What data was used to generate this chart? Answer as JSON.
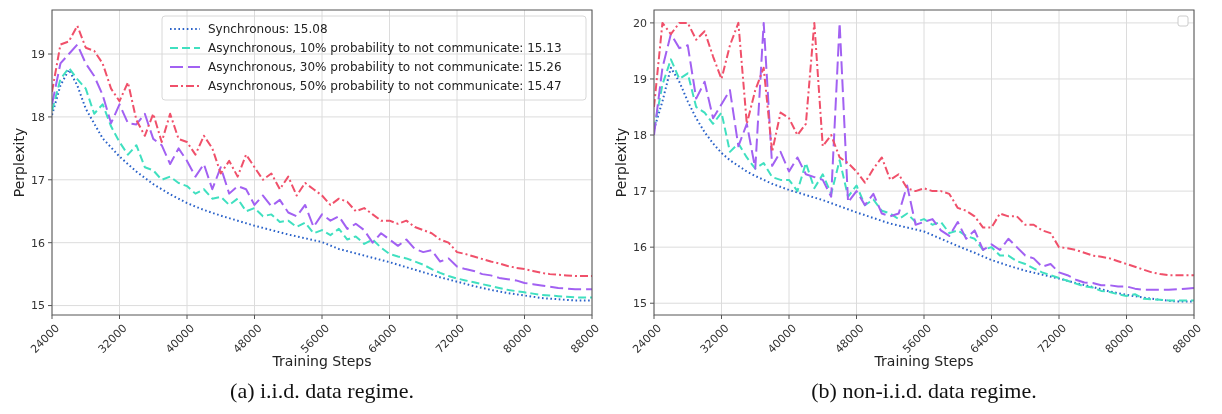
{
  "chart_data": [
    {
      "type": "line",
      "title": "(a) i.i.d. data regime.",
      "xlabel": "Training Steps",
      "ylabel": "Perplexity",
      "xlim": [
        24000,
        88000
      ],
      "xticks": [
        24000,
        32000,
        40000,
        48000,
        56000,
        64000,
        72000,
        80000,
        88000
      ],
      "ylim": [
        14.85,
        19.7
      ],
      "yticks": [
        15,
        16,
        17,
        18,
        19
      ],
      "grid": true,
      "legend": "top right",
      "x": [
        24000,
        25000,
        26000,
        27000,
        28000,
        29000,
        30000,
        31000,
        32000,
        33000,
        34000,
        35000,
        36000,
        37000,
        38000,
        39000,
        40000,
        41000,
        42000,
        43000,
        44000,
        45000,
        46000,
        47000,
        48000,
        49000,
        50000,
        51000,
        52000,
        53000,
        54000,
        55000,
        56000,
        57000,
        58000,
        59000,
        60000,
        61000,
        62000,
        63000,
        64000,
        65000,
        66000,
        67000,
        68000,
        69000,
        70000,
        71000,
        72000,
        73000,
        74000,
        75000,
        76000,
        77000,
        78000,
        79000,
        80000,
        81000,
        82000,
        83000,
        84000,
        85000,
        86000,
        87000,
        88000
      ],
      "series": [
        {
          "name": "Synchronous: 15.08",
          "color": "#2a62c9",
          "line_style": "dotted",
          "x": [
            24000,
            25000,
            26000,
            27000,
            28000,
            30000,
            32000,
            34000,
            36000,
            38000,
            40000,
            42000,
            44000,
            46000,
            48000,
            50000,
            52000,
            54000,
            56000,
            58000,
            60000,
            62000,
            64000,
            66000,
            68000,
            70000,
            72000,
            74000,
            76000,
            78000,
            80000,
            82000,
            84000,
            86000,
            88000
          ],
          "values": [
            18.03,
            18.5,
            18.75,
            18.5,
            18.13,
            17.66,
            17.37,
            17.13,
            16.93,
            16.77,
            16.63,
            16.52,
            16.43,
            16.35,
            16.27,
            16.2,
            16.13,
            16.07,
            16.01,
            15.9,
            15.83,
            15.76,
            15.69,
            15.61,
            15.53,
            15.45,
            15.38,
            15.31,
            15.25,
            15.2,
            15.16,
            15.12,
            15.1,
            15.08,
            15.08
          ]
        },
        {
          "name": "Asynchronous, 10% probability to not communicate: 15.13",
          "color": "#40e0c0",
          "line_style": "dashed",
          "values": [
            18.1,
            18.6,
            18.78,
            18.6,
            18.45,
            18.05,
            18.2,
            17.85,
            17.6,
            17.4,
            17.55,
            17.2,
            17.15,
            17.0,
            17.05,
            16.95,
            16.9,
            16.78,
            16.85,
            16.7,
            16.73,
            16.6,
            16.7,
            16.5,
            16.55,
            16.42,
            16.45,
            16.33,
            16.35,
            16.25,
            16.32,
            16.15,
            16.2,
            16.12,
            16.22,
            16.05,
            16.1,
            15.98,
            16.05,
            15.92,
            15.82,
            15.78,
            15.75,
            15.7,
            15.65,
            15.58,
            15.52,
            15.47,
            15.43,
            15.4,
            15.37,
            15.34,
            15.31,
            15.28,
            15.25,
            15.23,
            15.21,
            15.19,
            15.17,
            15.16,
            15.15,
            15.14,
            15.13,
            15.13,
            15.13
          ]
        },
        {
          "name": "Asynchronous, 30% probability to not communicate: 15.26",
          "color": "#a261f2",
          "line_style": "dashed",
          "values": [
            18.2,
            18.85,
            19.0,
            19.15,
            18.85,
            18.65,
            18.35,
            17.9,
            18.2,
            17.9,
            17.88,
            18.05,
            17.65,
            17.55,
            17.25,
            17.5,
            17.3,
            17.05,
            17.25,
            16.85,
            17.2,
            16.78,
            16.9,
            16.85,
            16.6,
            16.75,
            16.58,
            16.68,
            16.48,
            16.42,
            16.6,
            16.25,
            16.45,
            16.35,
            16.42,
            16.22,
            16.3,
            16.2,
            16.0,
            16.15,
            16.05,
            15.95,
            16.05,
            15.9,
            15.85,
            15.88,
            15.7,
            15.75,
            15.62,
            15.58,
            15.55,
            15.5,
            15.48,
            15.44,
            15.42,
            15.4,
            15.36,
            15.34,
            15.32,
            15.3,
            15.28,
            15.27,
            15.26,
            15.26,
            15.26
          ]
        },
        {
          "name": "Asynchronous, 50% probability to not communicate: 15.47",
          "color": "#f0506a",
          "line_style": "dashed",
          "values": [
            18.4,
            19.15,
            19.2,
            19.45,
            19.1,
            19.05,
            18.85,
            18.45,
            18.25,
            18.55,
            17.95,
            17.7,
            18.05,
            17.6,
            18.05,
            17.65,
            17.6,
            17.4,
            17.7,
            17.5,
            17.1,
            17.3,
            17.05,
            17.4,
            17.2,
            17.0,
            17.1,
            16.85,
            17.05,
            16.75,
            16.95,
            16.85,
            16.75,
            16.6,
            16.7,
            16.65,
            16.5,
            16.55,
            16.45,
            16.35,
            16.35,
            16.3,
            16.35,
            16.25,
            16.2,
            16.15,
            16.05,
            16.0,
            15.85,
            15.82,
            15.78,
            15.74,
            15.7,
            15.67,
            15.63,
            15.6,
            15.58,
            15.55,
            15.52,
            15.5,
            15.49,
            15.48,
            15.47,
            15.47,
            15.47
          ]
        }
      ]
    },
    {
      "type": "line",
      "title": "(b) non-i.i.d. data regime.",
      "xlabel": "Training Steps",
      "ylabel": "Perplexity",
      "xlim": [
        24000,
        88000
      ],
      "xticks": [
        24000,
        32000,
        40000,
        48000,
        56000,
        64000,
        72000,
        80000,
        88000
      ],
      "ylim": [
        14.79,
        20.23
      ],
      "yticks": [
        15,
        16,
        17,
        18,
        19,
        20
      ],
      "grid": true,
      "x": [
        24000,
        25000,
        26000,
        27000,
        28000,
        29000,
        30000,
        31000,
        32000,
        33000,
        34000,
        35000,
        36000,
        37000,
        38000,
        39000,
        40000,
        41000,
        42000,
        43000,
        44000,
        45000,
        46000,
        47000,
        48000,
        49000,
        50000,
        51000,
        52000,
        53000,
        54000,
        55000,
        56000,
        57000,
        58000,
        59000,
        60000,
        61000,
        62000,
        63000,
        64000,
        65000,
        66000,
        67000,
        68000,
        69000,
        70000,
        71000,
        72000,
        73000,
        74000,
        75000,
        76000,
        77000,
        78000,
        79000,
        80000,
        81000,
        82000,
        83000,
        84000,
        85000,
        86000,
        87000,
        88000
      ],
      "series": [
        {
          "color": "#2a62c9",
          "line_style": "dotted",
          "x": [
            24000,
            25000,
            26000,
            27000,
            28000,
            29000,
            30000,
            31000,
            32000,
            33000,
            34000,
            35000,
            36000,
            37000,
            38000,
            40000,
            42000,
            44000,
            46000,
            48000,
            50000,
            52000,
            54000,
            56000,
            58000,
            60000,
            62000,
            64000,
            66000,
            68000,
            70000,
            72000,
            74000,
            76000,
            78000,
            80000,
            82000,
            84000,
            86000,
            88000
          ],
          "values": [
            18.1,
            18.6,
            19.2,
            18.95,
            18.6,
            18.3,
            18.05,
            17.85,
            17.68,
            17.55,
            17.45,
            17.35,
            17.27,
            17.2,
            17.13,
            17.02,
            16.93,
            16.84,
            16.73,
            16.62,
            16.52,
            16.42,
            16.35,
            16.28,
            16.15,
            16.02,
            15.9,
            15.77,
            15.67,
            15.58,
            15.51,
            15.44,
            15.36,
            15.29,
            15.21,
            15.15,
            15.1,
            15.06,
            15.03,
            15.03
          ]
        },
        {
          "color": "#40e0c0",
          "line_style": "dashed",
          "values": [
            18.1,
            18.9,
            19.35,
            19.0,
            19.1,
            18.5,
            18.4,
            18.2,
            18.4,
            17.7,
            17.85,
            17.6,
            17.4,
            17.5,
            17.25,
            17.2,
            17.2,
            17.0,
            17.5,
            17.05,
            17.3,
            16.95,
            17.55,
            16.9,
            17.1,
            16.75,
            16.85,
            16.65,
            16.6,
            16.5,
            16.6,
            16.45,
            16.5,
            16.4,
            16.45,
            16.25,
            16.3,
            16.2,
            16.15,
            15.95,
            16.0,
            15.85,
            15.85,
            15.75,
            15.7,
            15.62,
            15.55,
            15.5,
            15.45,
            15.4,
            15.35,
            15.3,
            15.28,
            15.22,
            15.2,
            15.16,
            15.13,
            15.16,
            15.08,
            15.07,
            15.06,
            15.05,
            15.05,
            15.05,
            15.05
          ]
        },
        {
          "color": "#a261f2",
          "line_style": "dashed",
          "values": [
            18.0,
            19.2,
            19.8,
            19.55,
            19.6,
            18.65,
            18.95,
            18.3,
            18.55,
            18.8,
            17.8,
            18.2,
            17.4,
            20.0,
            17.45,
            17.7,
            17.35,
            17.6,
            17.3,
            17.25,
            17.2,
            16.9,
            20.0,
            16.8,
            17.0,
            16.75,
            16.95,
            16.6,
            16.55,
            16.6,
            17.1,
            16.4,
            16.45,
            16.5,
            16.3,
            16.2,
            16.45,
            16.15,
            16.3,
            15.95,
            16.05,
            15.95,
            16.15,
            16.0,
            15.85,
            15.8,
            15.65,
            15.7,
            15.55,
            15.5,
            15.42,
            15.37,
            15.36,
            15.32,
            15.32,
            15.3,
            15.3,
            15.26,
            15.24,
            15.24,
            15.24,
            15.24,
            15.25,
            15.26,
            15.27
          ]
        },
        {
          "color": "#f0506a",
          "line_style": "dashed",
          "values": [
            18.5,
            20.0,
            19.8,
            20.0,
            20.0,
            19.7,
            19.85,
            19.4,
            19.0,
            19.6,
            20.0,
            18.2,
            18.8,
            19.2,
            17.7,
            18.4,
            18.3,
            18.0,
            18.2,
            20.0,
            17.8,
            18.0,
            17.6,
            17.5,
            17.35,
            17.15,
            17.4,
            17.6,
            17.2,
            17.3,
            17.05,
            17.0,
            17.05,
            17.0,
            17.0,
            16.95,
            16.7,
            16.65,
            16.55,
            16.35,
            16.35,
            16.6,
            16.55,
            16.55,
            16.4,
            16.4,
            16.3,
            16.25,
            16.0,
            15.98,
            15.95,
            15.9,
            15.85,
            15.83,
            15.8,
            15.75,
            15.7,
            15.65,
            15.6,
            15.55,
            15.52,
            15.5,
            15.5,
            15.5,
            15.5
          ]
        }
      ]
    }
  ]
}
